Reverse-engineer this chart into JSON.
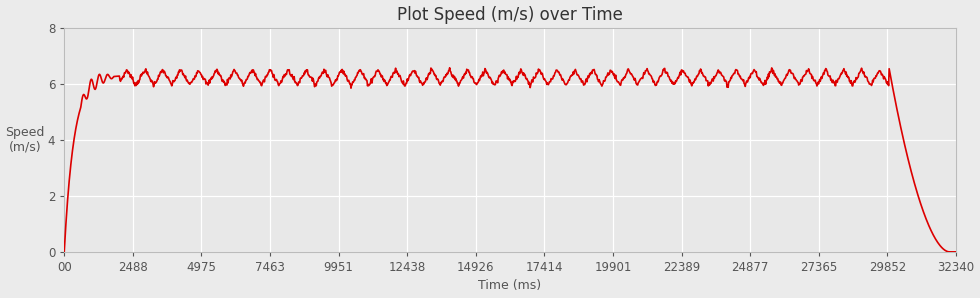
{
  "title": "Plot Speed (m/s) over Time",
  "xlabel": "Time (ms)",
  "ylabel": "Speed\n(m/s)",
  "xlim": [
    0,
    32340
  ],
  "ylim": [
    0,
    8
  ],
  "yticks": [
    0,
    2,
    4,
    6,
    8
  ],
  "xtick_labels": [
    "00",
    "2488",
    "4975",
    "7463",
    "9951",
    "12438",
    "14926",
    "17414",
    "19901",
    "22389",
    "24877",
    "27365",
    "29852",
    "32340"
  ],
  "xtick_values": [
    0,
    2488,
    4975,
    7463,
    9951,
    12438,
    14926,
    17414,
    19901,
    22389,
    24877,
    27365,
    29852,
    32340
  ],
  "line_color": "#dd0000",
  "bg_color": "#ebebeb",
  "plot_bg_color": "#e8e8e8",
  "grid_color": "#ffffff",
  "total_time_ms": 32340,
  "drop_start_ms": 29900,
  "drop_end_ms": 32100,
  "title_fontsize": 12,
  "label_fontsize": 9,
  "tick_fontsize": 8.5,
  "osc_period_ms": 650,
  "osc_base": 6.15,
  "osc_amp": 0.55,
  "rise_end_ms": 2000,
  "line_width": 1.2
}
